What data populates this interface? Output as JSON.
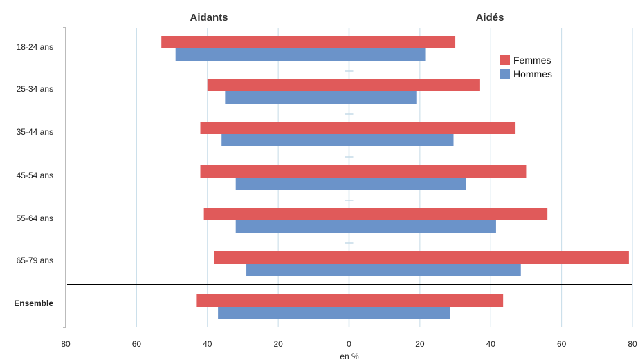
{
  "chart_data": {
    "type": "bar",
    "orientation": "horizontal-butterfly",
    "headers": {
      "left": "Aidants",
      "right": "Aidés"
    },
    "categories": [
      "18-24 ans",
      "25-34 ans",
      "35-44 ans",
      "45-54 ans",
      "55-64 ans",
      "65-79 ans",
      "Ensemble"
    ],
    "series": [
      {
        "name": "Femmes",
        "color": "#e05a5a",
        "aidants": [
          53,
          40,
          42,
          42,
          41,
          38,
          43
        ],
        "aides": [
          30,
          37,
          47,
          50,
          56,
          79,
          43.5
        ]
      },
      {
        "name": "Hommes",
        "color": "#6b93c9",
        "aidants": [
          49,
          35,
          36,
          32,
          32,
          29,
          37
        ],
        "aides": [
          21.5,
          19,
          29.5,
          33,
          41.5,
          48.5,
          28.5
        ]
      }
    ],
    "x_ticks": [
      "80",
      "60",
      "40",
      "20",
      "0",
      "20",
      "40",
      "60",
      "80"
    ],
    "xlabel": "en %",
    "xlim": [
      -80,
      80
    ],
    "grid": true,
    "legend_position": "top-right"
  }
}
